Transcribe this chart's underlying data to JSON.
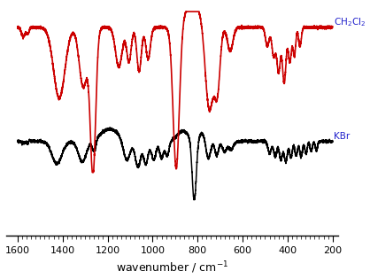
{
  "xlim_left": 1650,
  "xlim_right": 175,
  "xticks": [
    1600,
    1400,
    1200,
    1000,
    800,
    600,
    400,
    200
  ],
  "xlabel": "wavenumber / cm$^{-1}$",
  "red_label": "CH$_2$Cl$_2$",
  "black_label": "KBr",
  "red_color": "#cc0000",
  "black_color": "#000000",
  "blue_color": "#2222cc",
  "background": "#ffffff",
  "red_linewidth": 1.2,
  "black_linewidth": 1.1
}
